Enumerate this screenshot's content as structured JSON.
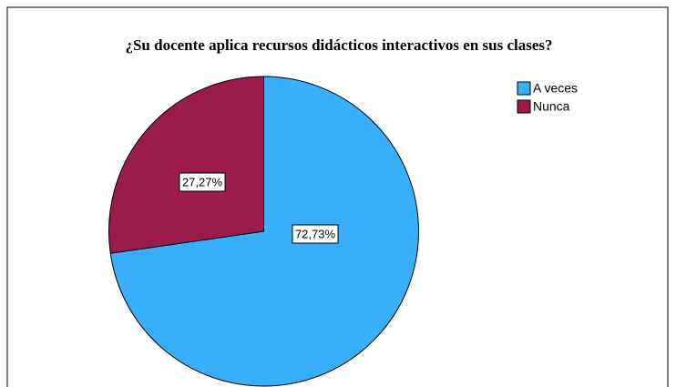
{
  "chart_data": {
    "type": "pie",
    "title": "¿Su docente aplica recursos didácticos interactivos en sus clases?",
    "categories": [
      "A veces",
      "Nunca"
    ],
    "values": [
      72.73,
      27.27
    ],
    "value_labels": [
      "72,73%",
      "27,27%"
    ],
    "colors": [
      "#39aefb",
      "#9b1b4d"
    ],
    "legend": "top-right"
  }
}
